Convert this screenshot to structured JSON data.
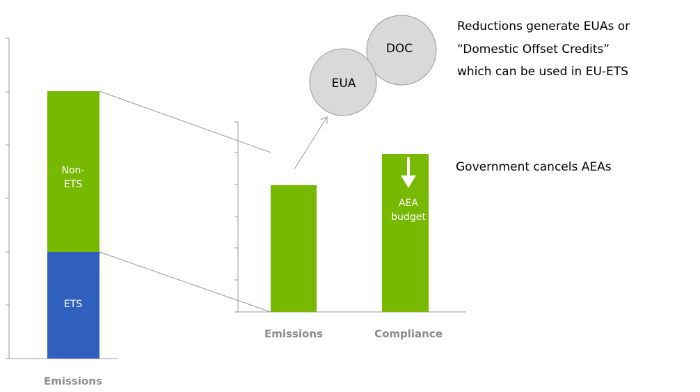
{
  "left_chart": {
    "bar_labels": [
      "Non-\nETS",
      "ETS"
    ],
    "category": "Emissions"
  },
  "right_chart": {
    "categories": [
      "Emissions",
      "Compliance"
    ],
    "bar_label": "AEA budget",
    "annotation": "Government cancels AEAs"
  },
  "bubbles": [
    "EUA",
    "DOC"
  ],
  "note": [
    "Reductions generate EUAs or",
    "“Domestic Offset Credits”",
    "which can be used in EU-ETS"
  ]
}
